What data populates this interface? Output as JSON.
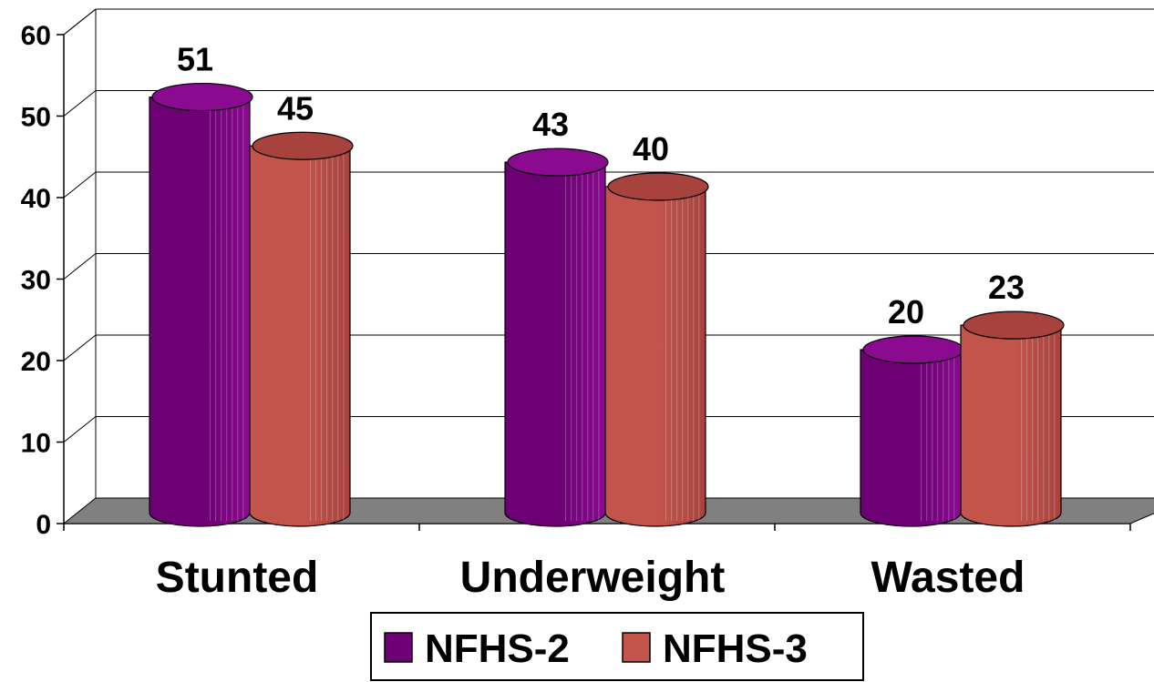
{
  "chart_data": {
    "type": "bar",
    "categories": [
      "Stunted",
      "Underweight",
      "Wasted"
    ],
    "series": [
      {
        "name": "NFHS-2",
        "values": [
          51,
          43,
          20
        ],
        "color": "#6e0075",
        "top_color": "#8a0a90"
      },
      {
        "name": "NFHS-3",
        "values": [
          45,
          40,
          23
        ],
        "color": "#c2544c",
        "top_color": "#a8423d"
      }
    ],
    "ylim": [
      0,
      60
    ],
    "yticks": [
      0,
      10,
      20,
      30,
      40,
      50,
      60
    ],
    "grid": true,
    "legend": "bottom",
    "floor_color": "#808080",
    "title": "",
    "xlabel": "",
    "ylabel": ""
  }
}
